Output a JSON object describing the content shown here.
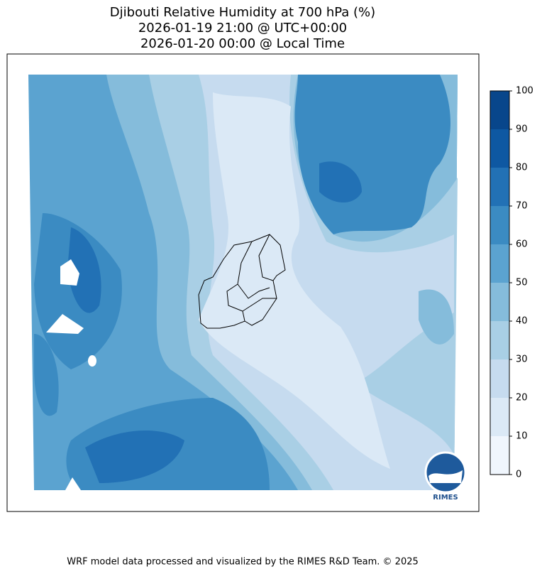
{
  "title": [
    "Djibouti Relative Humidity at 700 hPa (%)",
    "2026-01-19 21:00 @ UTC+00:00",
    "2026-01-20 00:00 @ Local Time"
  ],
  "colorbar": {
    "ticks": [
      0,
      10,
      20,
      30,
      40,
      50,
      60,
      70,
      80,
      90,
      100
    ],
    "colors": [
      "#f0f6fd",
      "#dbe9f6",
      "#c6dbef",
      "#a9cfe5",
      "#85bcdb",
      "#5ba3d0",
      "#3b8bc2",
      "#2271b5",
      "#0e58a2",
      "#08468b"
    ]
  },
  "logo": "RIMES",
  "footer": "WRF model data processed and visualized by the RIMES R&D Team. © 2025"
}
